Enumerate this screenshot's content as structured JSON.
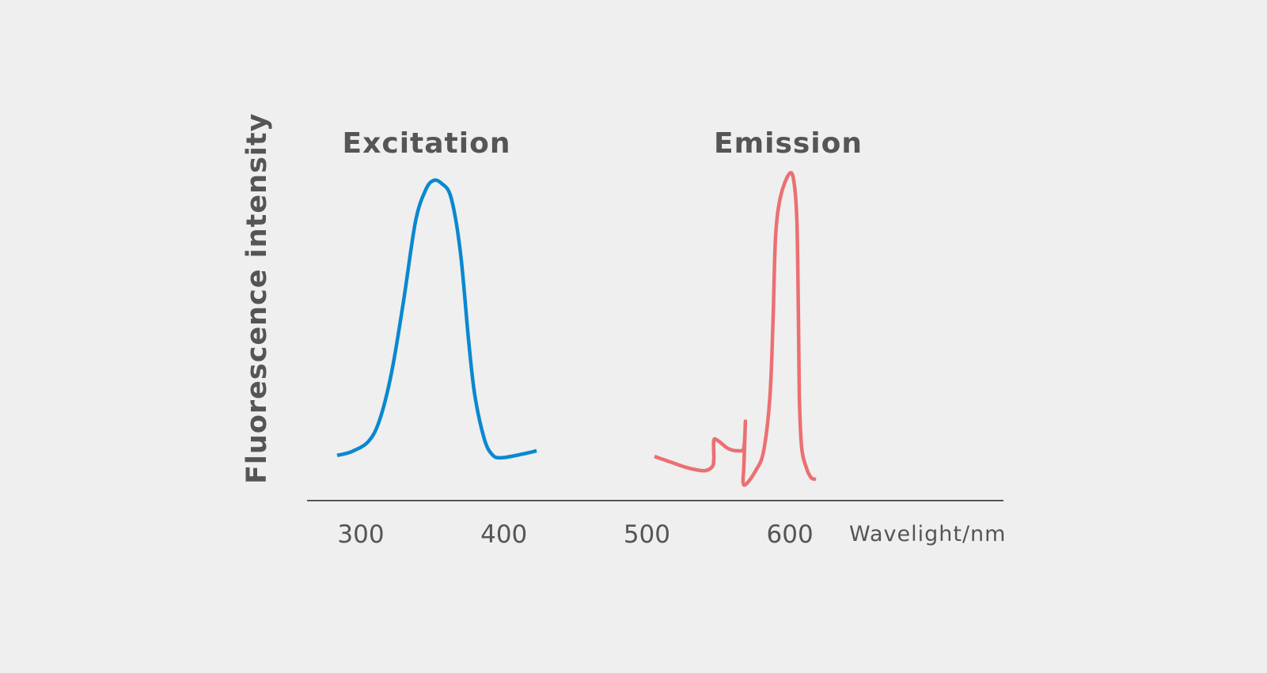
{
  "chart_data": {
    "type": "line",
    "ylabel": "Fluorescence intensity",
    "xlabel": "Wavelight/nm",
    "xlim": [
      270,
      650
    ],
    "ylim": [
      0,
      100
    ],
    "x_ticks": [
      300,
      400,
      500,
      600
    ],
    "x_tick_labels": [
      "300",
      "400",
      "500",
      "600"
    ],
    "grid": false,
    "series": [
      {
        "name": "Excitation",
        "color": "#0a88d0",
        "x": [
          283.4,
          293.9,
          305.5,
          313.3,
          321.6,
          329.9,
          338.2,
          345.4,
          350.9,
          356.4,
          363.1,
          369.7,
          375.3,
          379.7,
          386.3,
          391.9,
          398.5,
          412.9,
          422.9
        ],
        "y": [
          13.6,
          14.8,
          17.9,
          24.5,
          38.8,
          60.2,
          84.0,
          93.6,
          96.4,
          95.5,
          91.2,
          74.5,
          48.3,
          31.7,
          18.6,
          13.8,
          12.9,
          14.0,
          15.0
        ]
      },
      {
        "name": "Emission",
        "color": "#ec6f72",
        "x": [
          505.3,
          518.0,
          529.1,
          540.2,
          545.7,
          546.8,
          546.8,
          549.6,
          556.8,
          564.0,
          567.8,
          568.9,
          567.8,
          567.3,
          569.5,
          576.1,
          581.7,
          586.1,
          588.3,
          590.0,
          593.3,
          599.4,
          602.7,
          604.9,
          606.0,
          606.6,
          608.2,
          611.6,
          614.9,
          618.2
        ],
        "y": [
          13.3,
          11.4,
          9.8,
          9.0,
          10.2,
          12.6,
          18.1,
          18.1,
          15.7,
          15.0,
          16.0,
          23.8,
          10.2,
          5.5,
          5.0,
          9.0,
          15.0,
          31.7,
          55.5,
          79.3,
          91.2,
          98.3,
          96.4,
          84.0,
          55.5,
          31.7,
          16.2,
          9.8,
          6.9,
          6.4
        ]
      }
    ],
    "annotations": [
      "Excitation",
      "Emission"
    ],
    "axis_color": "#555555"
  }
}
